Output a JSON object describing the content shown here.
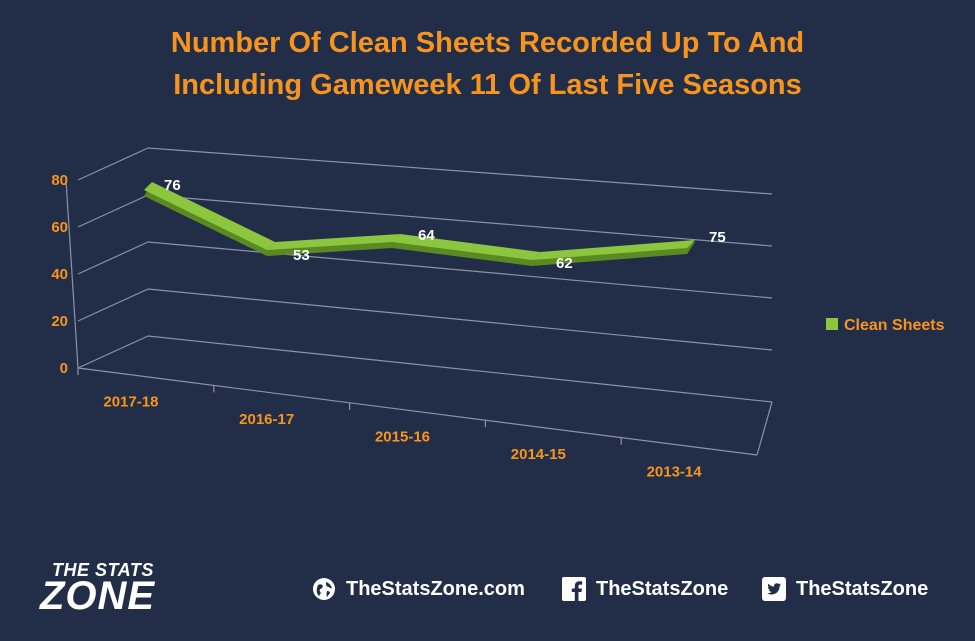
{
  "chart_data": {
    "type": "line",
    "title": "Number Of Clean Sheets Recorded Up To And Including Gameweek 11 Of Last Five Seasons",
    "title_lines": [
      "Number Of Clean Sheets Recorded Up To And",
      "Including Gameweek 11 Of Last Five Seasons"
    ],
    "categories": [
      "2017-18",
      "2016-17",
      "2015-16",
      "2014-15",
      "2013-14"
    ],
    "series": [
      {
        "name": "Clean Sheets",
        "values": [
          76,
          53,
          64,
          62,
          75
        ]
      }
    ],
    "y_ticks": [
      "0",
      "20",
      "40",
      "60",
      "80"
    ],
    "ylim": [
      0,
      80
    ],
    "grid": true,
    "legend": "right",
    "xlabel": "",
    "ylabel": ""
  },
  "colors": {
    "background": "#222e48",
    "title": "#f7941d",
    "line": "#8cc63f",
    "line_dark": "#5a8a22",
    "labels": "#ffffff",
    "grid": "#8a93a6"
  },
  "footer": {
    "logo_top": "THE STATS",
    "logo_bottom": "ZONE",
    "website": "TheStatsZone.com",
    "facebook": "TheStatsZone",
    "twitter": "TheStatsZone",
    "website_icon": "globe-icon",
    "facebook_icon": "facebook-icon",
    "twitter_icon": "twitter-icon"
  }
}
